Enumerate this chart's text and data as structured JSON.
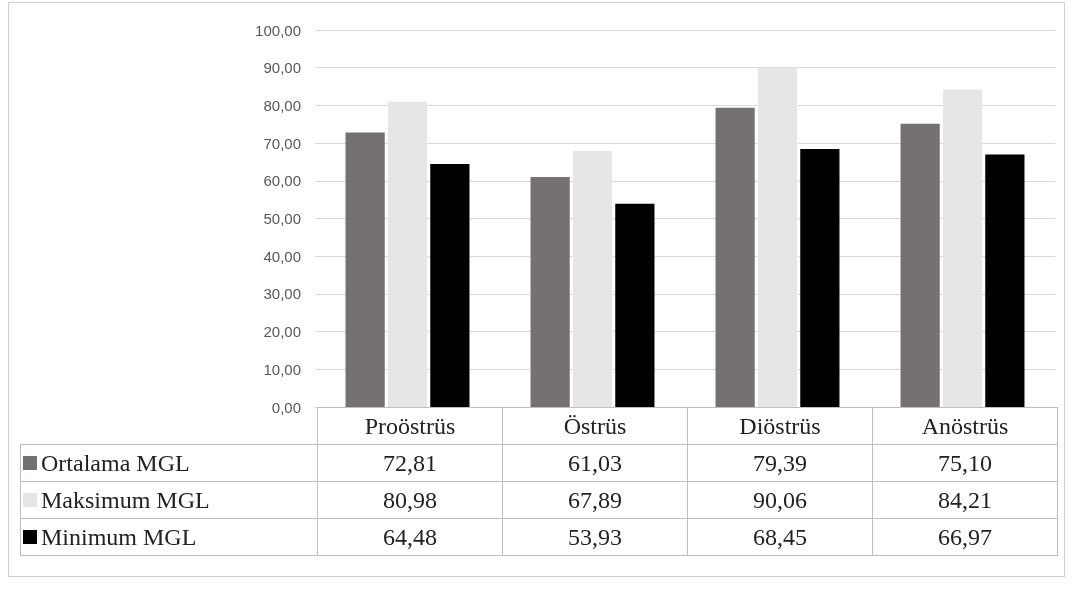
{
  "chart_data": {
    "type": "bar",
    "categories": [
      "Proöstrüs",
      "Östrüs",
      "Diöstrüs",
      "Anöstrüs"
    ],
    "series": [
      {
        "name": "Ortalama MGL",
        "color": "#767171",
        "values": [
          72.81,
          61.03,
          79.39,
          75.1
        ],
        "value_labels": [
          "72,81",
          "61,03",
          "79,39",
          "75,10"
        ]
      },
      {
        "name": "Maksimum MGL",
        "color": "#e7e6e6",
        "values": [
          80.98,
          67.89,
          90.06,
          84.21
        ],
        "value_labels": [
          "80,98",
          "67,89",
          "90,06",
          "84,21"
        ]
      },
      {
        "name": "Minimum MGL",
        "color": "#000000",
        "values": [
          64.48,
          53.93,
          68.45,
          66.97
        ],
        "value_labels": [
          "64,48",
          "53,93",
          "68,45",
          "66,97"
        ]
      }
    ],
    "ylim": [
      0,
      100
    ],
    "yticks": [
      {
        "value": 0,
        "label": "0,00"
      },
      {
        "value": 10,
        "label": "10,00"
      },
      {
        "value": 20,
        "label": "20,00"
      },
      {
        "value": 30,
        "label": "30,00"
      },
      {
        "value": 40,
        "label": "40,00"
      },
      {
        "value": 50,
        "label": "50,00"
      },
      {
        "value": 60,
        "label": "60,00"
      },
      {
        "value": 70,
        "label": "70,00"
      },
      {
        "value": 80,
        "label": "80,00"
      },
      {
        "value": 90,
        "label": "90,00"
      },
      {
        "value": 100,
        "label": "100,00"
      }
    ],
    "grid": "y",
    "legend": "bottom"
  }
}
